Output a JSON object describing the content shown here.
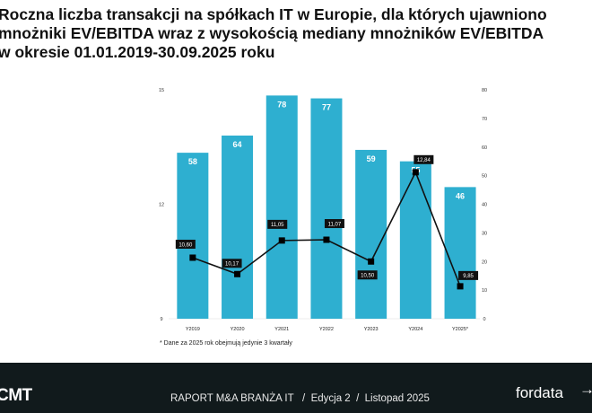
{
  "title": [
    "Roczna liczba transakcji na spółkach IT w Europie, dla których ujawniono",
    "mnożniki EV/EBITDA wraz z wysokością mediany mnożników EV/EBITDA",
    "w okresie 01.01.2019-30.09.2025 roku"
  ],
  "chart_data": {
    "type": "bar+line",
    "categories": [
      "Y2019",
      "Y2020",
      "Y2021",
      "Y2022",
      "Y2023",
      "Y2024",
      "Y2025*"
    ],
    "series": [
      {
        "name": "Liczba transakcji",
        "type": "bar",
        "axis": "right",
        "values": [
          58,
          64,
          78,
          77,
          59,
          55,
          46
        ],
        "labels": [
          "58",
          "64",
          "78",
          "77",
          "59",
          "55",
          "46"
        ],
        "color": "#2eafd0"
      },
      {
        "name": "Mediana EV/EBITDA",
        "type": "line",
        "axis": "left",
        "values": [
          10.6,
          10.17,
          11.05,
          11.07,
          10.5,
          12.84,
          9.85
        ],
        "labels": [
          "10,60",
          "10,17",
          "11,05",
          "11,07",
          "10,50",
          "12,84",
          "9,85"
        ],
        "color": "#111111"
      }
    ],
    "left_axis": {
      "ylim": [
        9,
        15
      ],
      "ticks": [
        "9",
        "12",
        "15"
      ]
    },
    "right_axis": {
      "ylim": [
        0,
        80
      ],
      "ticks": [
        "0",
        "10",
        "20",
        "30",
        "40",
        "50",
        "60",
        "70",
        "80"
      ]
    }
  },
  "footnote": "* Dane za 2025 rok obejmują jedynie 3 kwartały",
  "footer": {
    "logo": "CMT",
    "report": "RAPORT M&A BRANŻA IT   /  Edycja 2  /  Listopad 2025",
    "brand": "fordata",
    "arrow": "→"
  }
}
